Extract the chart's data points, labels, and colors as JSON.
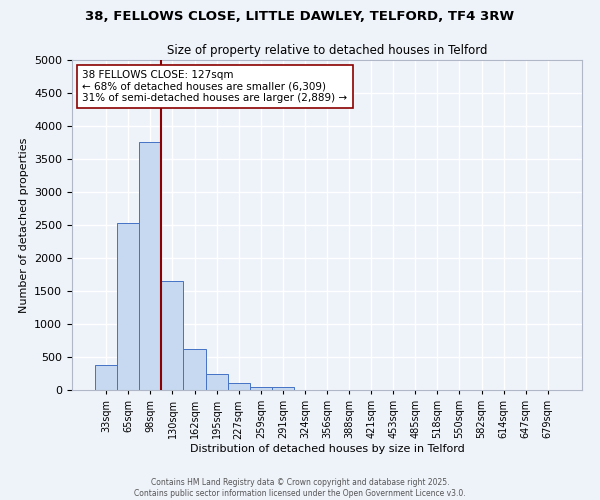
{
  "title_line1": "38, FELLOWS CLOSE, LITTLE DAWLEY, TELFORD, TF4 3RW",
  "title_line2": "Size of property relative to detached houses in Telford",
  "xlabel": "Distribution of detached houses by size in Telford",
  "ylabel": "Number of detached properties",
  "bar_labels": [
    "33sqm",
    "65sqm",
    "98sqm",
    "130sqm",
    "162sqm",
    "195sqm",
    "227sqm",
    "259sqm",
    "291sqm",
    "324sqm",
    "356sqm",
    "388sqm",
    "421sqm",
    "453sqm",
    "485sqm",
    "518sqm",
    "550sqm",
    "582sqm",
    "614sqm",
    "647sqm",
    "679sqm"
  ],
  "bar_values": [
    380,
    2530,
    3760,
    1650,
    620,
    235,
    110,
    50,
    40,
    0,
    0,
    0,
    0,
    0,
    0,
    0,
    0,
    0,
    0,
    0,
    0
  ],
  "bar_color": "#c6d9f0",
  "bar_edge_color": "#4472c4",
  "vline_color": "#8b0000",
  "annotation_text": "38 FELLOWS CLOSE: 127sqm\n← 68% of detached houses are smaller (6,309)\n31% of semi-detached houses are larger (2,889) →",
  "annotation_box_color": "#ffffff",
  "annotation_box_edge": "#8b0000",
  "ylim": [
    0,
    5000
  ],
  "yticks": [
    0,
    500,
    1000,
    1500,
    2000,
    2500,
    3000,
    3500,
    4000,
    4500,
    5000
  ],
  "footer_line1": "Contains HM Land Registry data © Crown copyright and database right 2025.",
  "footer_line2": "Contains public sector information licensed under the Open Government Licence v3.0.",
  "bg_color": "#eef2f9",
  "plot_bg_color": "#eef2f9",
  "grid_color": "#ffffff"
}
